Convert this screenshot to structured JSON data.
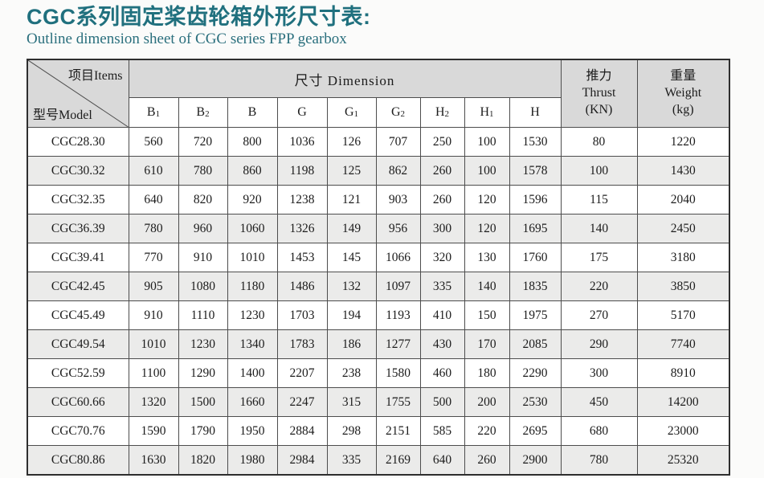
{
  "page": {
    "title": "CGC系列固定桨齿轮箱外形尺寸表:",
    "subtitle": "Outline dimension sheet of CGC series FPP gearbox"
  },
  "colors": {
    "accent_teal": "#20707e",
    "header_bg": "#d9d9d9",
    "stripe_bg": "#ebebea",
    "border": "#4d4d4d"
  },
  "table": {
    "corner_top": "项目Items",
    "corner_bottom": "型号Model",
    "dimension_header": "尺寸  Dimension",
    "thrust_header": [
      "推力",
      "Thrust",
      "(KN)"
    ],
    "weight_header": [
      "重量",
      "Weight",
      "(kg)"
    ],
    "columns": [
      {
        "base": "B",
        "sub": "1"
      },
      {
        "base": "B",
        "sub": "2"
      },
      {
        "base": "B",
        "sub": ""
      },
      {
        "base": "G",
        "sub": ""
      },
      {
        "base": "G",
        "sub": "1"
      },
      {
        "base": "G",
        "sub": "2"
      },
      {
        "base": "H",
        "sub": "2"
      },
      {
        "base": "H",
        "sub": "1"
      },
      {
        "base": "H",
        "sub": ""
      }
    ],
    "rows": [
      {
        "model": "CGC28.30",
        "values": [
          560,
          720,
          800,
          1036,
          126,
          707,
          250,
          100,
          1530
        ],
        "thrust": 80,
        "weight": 1220
      },
      {
        "model": "CGC30.32",
        "values": [
          610,
          780,
          860,
          1198,
          125,
          862,
          260,
          100,
          1578
        ],
        "thrust": 100,
        "weight": 1430
      },
      {
        "model": "CGC32.35",
        "values": [
          640,
          820,
          920,
          1238,
          121,
          903,
          260,
          120,
          1596
        ],
        "thrust": 115,
        "weight": 2040
      },
      {
        "model": "CGC36.39",
        "values": [
          780,
          960,
          1060,
          1326,
          149,
          956,
          300,
          120,
          1695
        ],
        "thrust": 140,
        "weight": 2450
      },
      {
        "model": "CGC39.41",
        "values": [
          770,
          910,
          1010,
          1453,
          145,
          1066,
          320,
          130,
          1760
        ],
        "thrust": 175,
        "weight": 3180
      },
      {
        "model": "CGC42.45",
        "values": [
          905,
          1080,
          1180,
          1486,
          132,
          1097,
          335,
          140,
          1835
        ],
        "thrust": 220,
        "weight": 3850
      },
      {
        "model": "CGC45.49",
        "values": [
          910,
          1110,
          1230,
          1703,
          194,
          1193,
          410,
          150,
          1975
        ],
        "thrust": 270,
        "weight": 5170
      },
      {
        "model": "CGC49.54",
        "values": [
          1010,
          1230,
          1340,
          1783,
          186,
          1277,
          430,
          170,
          2085
        ],
        "thrust": 290,
        "weight": 7740
      },
      {
        "model": "CGC52.59",
        "values": [
          1100,
          1290,
          1400,
          2207,
          238,
          1580,
          460,
          180,
          2290
        ],
        "thrust": 300,
        "weight": 8910
      },
      {
        "model": "CGC60.66",
        "values": [
          1320,
          1500,
          1660,
          2247,
          315,
          1755,
          500,
          200,
          2530
        ],
        "thrust": 450,
        "weight": 14200
      },
      {
        "model": "CGC70.76",
        "values": [
          1590,
          1790,
          1950,
          2884,
          298,
          2151,
          585,
          220,
          2695
        ],
        "thrust": 680,
        "weight": 23000
      },
      {
        "model": "CGC80.86",
        "values": [
          1630,
          1820,
          1980,
          2984,
          335,
          2169,
          640,
          260,
          2900
        ],
        "thrust": 780,
        "weight": 25320
      }
    ]
  }
}
